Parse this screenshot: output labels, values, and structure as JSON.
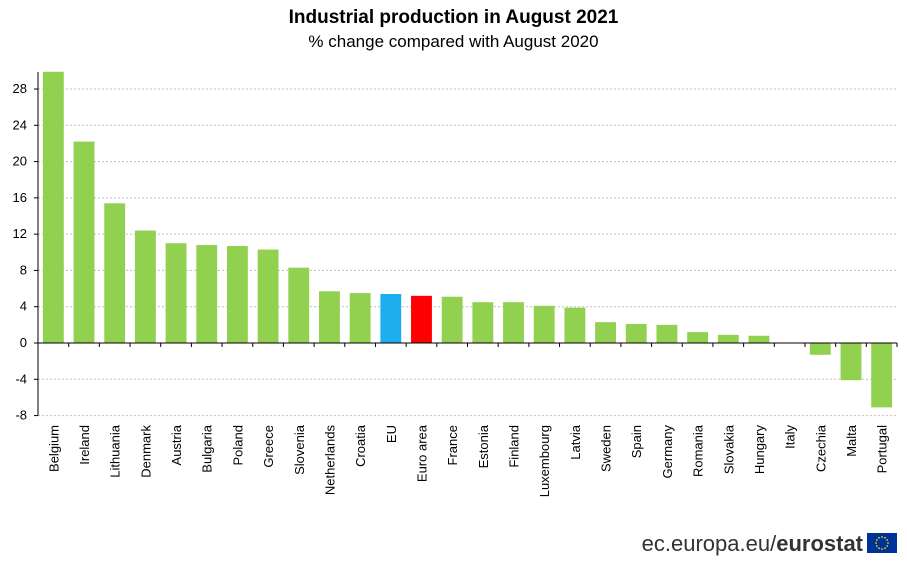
{
  "chart_data": {
    "type": "bar",
    "title": "Industrial production in August 2021",
    "subtitle": "% change compared with August 2020",
    "categories": [
      "Belgium",
      "Ireland",
      "Lithuania",
      "Denmark",
      "Austria",
      "Bulgaria",
      "Poland",
      "Greece",
      "Slovenia",
      "Netherlands",
      "Croatia",
      "EU",
      "Euro area",
      "France",
      "Estonia",
      "Finland",
      "Luxembourg",
      "Latvia",
      "Sweden",
      "Spain",
      "Germany",
      "Romania",
      "Slovakia",
      "Hungary",
      "Italy",
      "Czechia",
      "Malta",
      "Portugal"
    ],
    "values": [
      29.9,
      22.2,
      15.4,
      12.4,
      11.0,
      10.8,
      10.7,
      10.3,
      8.3,
      5.7,
      5.5,
      5.4,
      5.2,
      5.1,
      4.5,
      4.5,
      4.1,
      3.9,
      2.3,
      2.1,
      2.0,
      1.2,
      0.9,
      0.8,
      0.0,
      -1.3,
      -4.1,
      -7.1
    ],
    "colors": {
      "default": "#92d050",
      "EU": "#1eaeee",
      "Euro area": "#ff0000"
    },
    "ylim": [
      -8,
      30
    ],
    "yticks": [
      -8,
      -4,
      0,
      4,
      8,
      12,
      16,
      20,
      24,
      28
    ],
    "grid": true,
    "xlabel": "",
    "ylabel": ""
  },
  "footer": {
    "source_prefix": "ec.europa.eu/",
    "source_brand": "eurostat"
  }
}
